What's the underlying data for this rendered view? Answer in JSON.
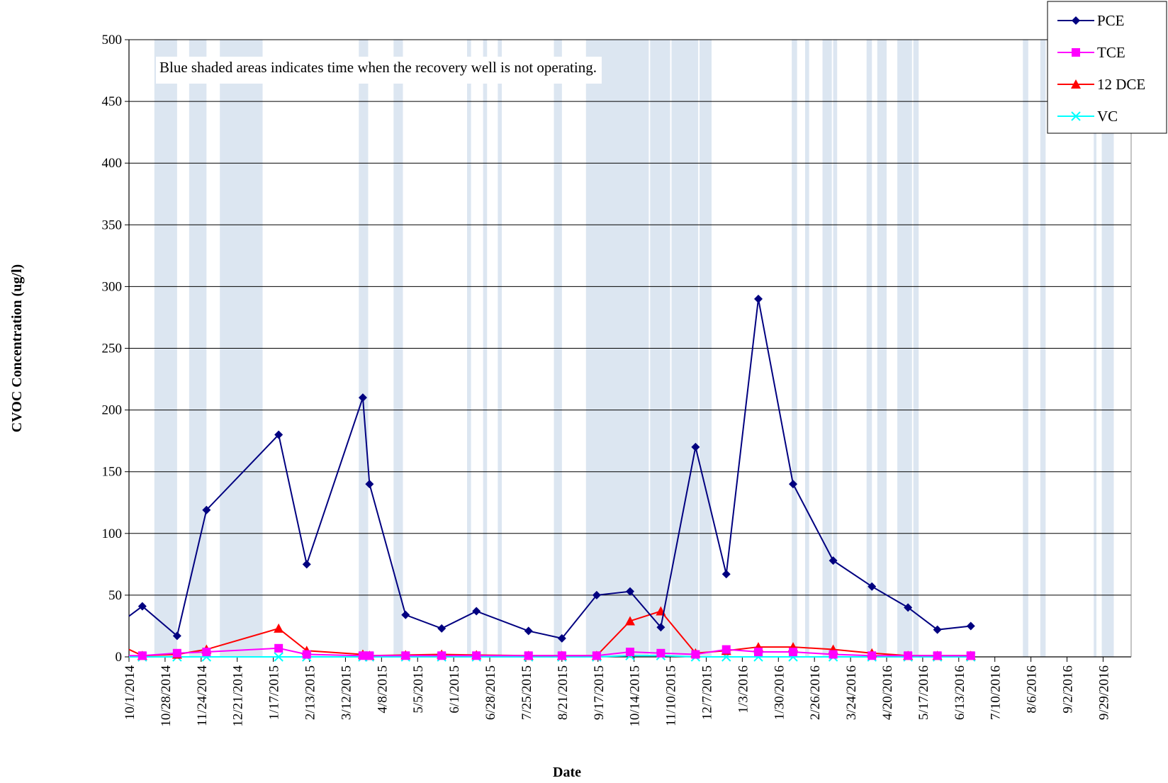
{
  "chart_data": {
    "type": "line",
    "xlabel": "Date",
    "ylabel": "CVOC Concentration (ug/l)",
    "ylim": [
      0,
      500
    ],
    "yticks": [
      0,
      50,
      100,
      150,
      200,
      250,
      300,
      350,
      400,
      450,
      500
    ],
    "xlim": [
      "2014-10-01",
      "2016-10-20"
    ],
    "xtick_labels": [
      "10/1/2014",
      "10/28/2014",
      "11/24/2014",
      "12/21/2014",
      "1/17/2015",
      "2/13/2015",
      "3/12/2015",
      "4/8/2015",
      "5/5/2015",
      "6/1/2015",
      "6/28/2015",
      "7/25/2015",
      "8/21/2015",
      "9/17/2015",
      "10/14/2015",
      "11/10/2015",
      "12/7/2015",
      "1/3/2016",
      "1/30/2016",
      "2/26/2016",
      "3/24/2016",
      "4/20/2016",
      "5/17/2016",
      "6/13/2016",
      "7/10/2016",
      "8/6/2016",
      "9/2/2016",
      "9/29/2016"
    ],
    "grid": "horizontal",
    "legend_position": "top-right",
    "annotation": "Blue shaded areas indicates time when the recovery well is not operating.",
    "shaded_color": "#dce6f1",
    "shaded_periods": [
      [
        "2014-10-20",
        "2014-11-06"
      ],
      [
        "2014-11-15",
        "2014-11-28"
      ],
      [
        "2014-12-08",
        "2015-01-09"
      ],
      [
        "2015-03-22",
        "2015-03-29"
      ],
      [
        "2015-04-17",
        "2015-04-24"
      ],
      [
        "2015-06-11",
        "2015-06-14"
      ],
      [
        "2015-06-23",
        "2015-06-26"
      ],
      [
        "2015-07-04",
        "2015-07-07"
      ],
      [
        "2015-08-15",
        "2015-08-21"
      ],
      [
        "2015-09-08",
        "2015-10-25"
      ],
      [
        "2015-10-26",
        "2015-11-10"
      ],
      [
        "2015-11-11",
        "2015-12-01"
      ],
      [
        "2015-12-02",
        "2015-12-11"
      ],
      [
        "2016-02-09",
        "2016-02-13"
      ],
      [
        "2016-02-19",
        "2016-02-22"
      ],
      [
        "2016-03-03",
        "2016-03-10"
      ],
      [
        "2016-03-11",
        "2016-03-14"
      ],
      [
        "2016-04-05",
        "2016-04-09"
      ],
      [
        "2016-04-13",
        "2016-04-20"
      ],
      [
        "2016-04-28",
        "2016-05-09"
      ],
      [
        "2016-05-10",
        "2016-05-14"
      ],
      [
        "2016-07-31",
        "2016-08-04"
      ],
      [
        "2016-08-13",
        "2016-08-17"
      ],
      [
        "2016-09-22",
        "2016-09-24"
      ],
      [
        "2016-09-28",
        "2016-10-07"
      ]
    ],
    "series": [
      {
        "name": "PCE",
        "color": "#000080",
        "marker": "diamond",
        "points": [
          [
            "2014-10-01",
            33
          ],
          [
            "2014-10-11",
            41
          ],
          [
            "2014-11-06",
            17
          ],
          [
            "2014-11-28",
            119
          ],
          [
            "2015-01-21",
            180
          ],
          [
            "2015-02-11",
            75
          ],
          [
            "2015-03-25",
            210
          ],
          [
            "2015-03-30",
            140
          ],
          [
            "2015-04-26",
            34
          ],
          [
            "2015-05-23",
            23
          ],
          [
            "2015-06-18",
            37
          ],
          [
            "2015-07-27",
            21
          ],
          [
            "2015-08-21",
            15
          ],
          [
            "2015-09-16",
            50
          ],
          [
            "2015-10-11",
            53
          ],
          [
            "2015-11-03",
            24
          ],
          [
            "2015-11-29",
            170
          ],
          [
            "2015-12-22",
            67
          ],
          [
            "2016-01-15",
            290
          ],
          [
            "2016-02-10",
            140
          ],
          [
            "2016-03-11",
            78
          ],
          [
            "2016-04-09",
            57
          ],
          [
            "2016-05-06",
            40
          ],
          [
            "2016-05-28",
            22
          ],
          [
            "2016-06-22",
            25
          ]
        ]
      },
      {
        "name": "TCE",
        "color": "#ff00ff",
        "marker": "square",
        "points": [
          [
            "2014-10-01",
            1
          ],
          [
            "2014-10-11",
            1
          ],
          [
            "2014-11-06",
            3
          ],
          [
            "2014-11-28",
            4
          ],
          [
            "2015-01-21",
            7
          ],
          [
            "2015-02-11",
            2
          ],
          [
            "2015-03-25",
            1
          ],
          [
            "2015-03-30",
            1
          ],
          [
            "2015-04-26",
            1
          ],
          [
            "2015-05-23",
            1
          ],
          [
            "2015-06-18",
            1
          ],
          [
            "2015-07-27",
            1
          ],
          [
            "2015-08-21",
            1
          ],
          [
            "2015-09-16",
            1
          ],
          [
            "2015-10-11",
            4
          ],
          [
            "2015-11-03",
            3
          ],
          [
            "2015-11-29",
            2
          ],
          [
            "2015-12-22",
            6
          ],
          [
            "2016-01-15",
            4
          ],
          [
            "2016-02-10",
            4
          ],
          [
            "2016-03-11",
            2
          ],
          [
            "2016-04-09",
            1
          ],
          [
            "2016-05-06",
            1
          ],
          [
            "2016-05-28",
            1
          ],
          [
            "2016-06-22",
            1
          ]
        ]
      },
      {
        "name": "12 DCE",
        "color": "#ff0000",
        "marker": "triangle",
        "points": [
          [
            "2014-10-01",
            6
          ],
          [
            "2014-10-11",
            1
          ],
          [
            "2014-11-06",
            2
          ],
          [
            "2014-11-28",
            6
          ],
          [
            "2015-01-21",
            23
          ],
          [
            "2015-02-11",
            5
          ],
          [
            "2015-03-25",
            2
          ],
          [
            "2015-03-30",
            1
          ],
          [
            "2015-04-26",
            1.5
          ],
          [
            "2015-05-23",
            2
          ],
          [
            "2015-06-18",
            1.5
          ],
          [
            "2015-07-27",
            1
          ],
          [
            "2015-08-21",
            1
          ],
          [
            "2015-09-16",
            1
          ],
          [
            "2015-10-11",
            29
          ],
          [
            "2015-11-03",
            37
          ],
          [
            "2015-11-29",
            3
          ],
          [
            "2015-12-22",
            5
          ],
          [
            "2016-01-15",
            8
          ],
          [
            "2016-02-10",
            8
          ],
          [
            "2016-03-11",
            6
          ],
          [
            "2016-04-09",
            3
          ],
          [
            "2016-05-06",
            1
          ],
          [
            "2016-05-28",
            1
          ],
          [
            "2016-06-22",
            1
          ]
        ]
      },
      {
        "name": "VC",
        "color": "#00ffff",
        "marker": "x",
        "points": [
          [
            "2014-10-01",
            0
          ],
          [
            "2014-10-11",
            0
          ],
          [
            "2014-11-06",
            0
          ],
          [
            "2014-11-28",
            0
          ],
          [
            "2015-01-21",
            0
          ],
          [
            "2015-02-11",
            0
          ],
          [
            "2015-03-25",
            0
          ],
          [
            "2015-03-30",
            0
          ],
          [
            "2015-04-26",
            0
          ],
          [
            "2015-05-23",
            0
          ],
          [
            "2015-06-18",
            0
          ],
          [
            "2015-07-27",
            0
          ],
          [
            "2015-08-21",
            0
          ],
          [
            "2015-09-16",
            0
          ],
          [
            "2015-10-11",
            1
          ],
          [
            "2015-11-03",
            1
          ],
          [
            "2015-11-29",
            0
          ],
          [
            "2015-12-22",
            0
          ],
          [
            "2016-01-15",
            0
          ],
          [
            "2016-02-10",
            0
          ],
          [
            "2016-03-11",
            0
          ],
          [
            "2016-04-09",
            0
          ],
          [
            "2016-05-06",
            0
          ],
          [
            "2016-05-28",
            0
          ],
          [
            "2016-06-22",
            0
          ]
        ]
      }
    ]
  }
}
